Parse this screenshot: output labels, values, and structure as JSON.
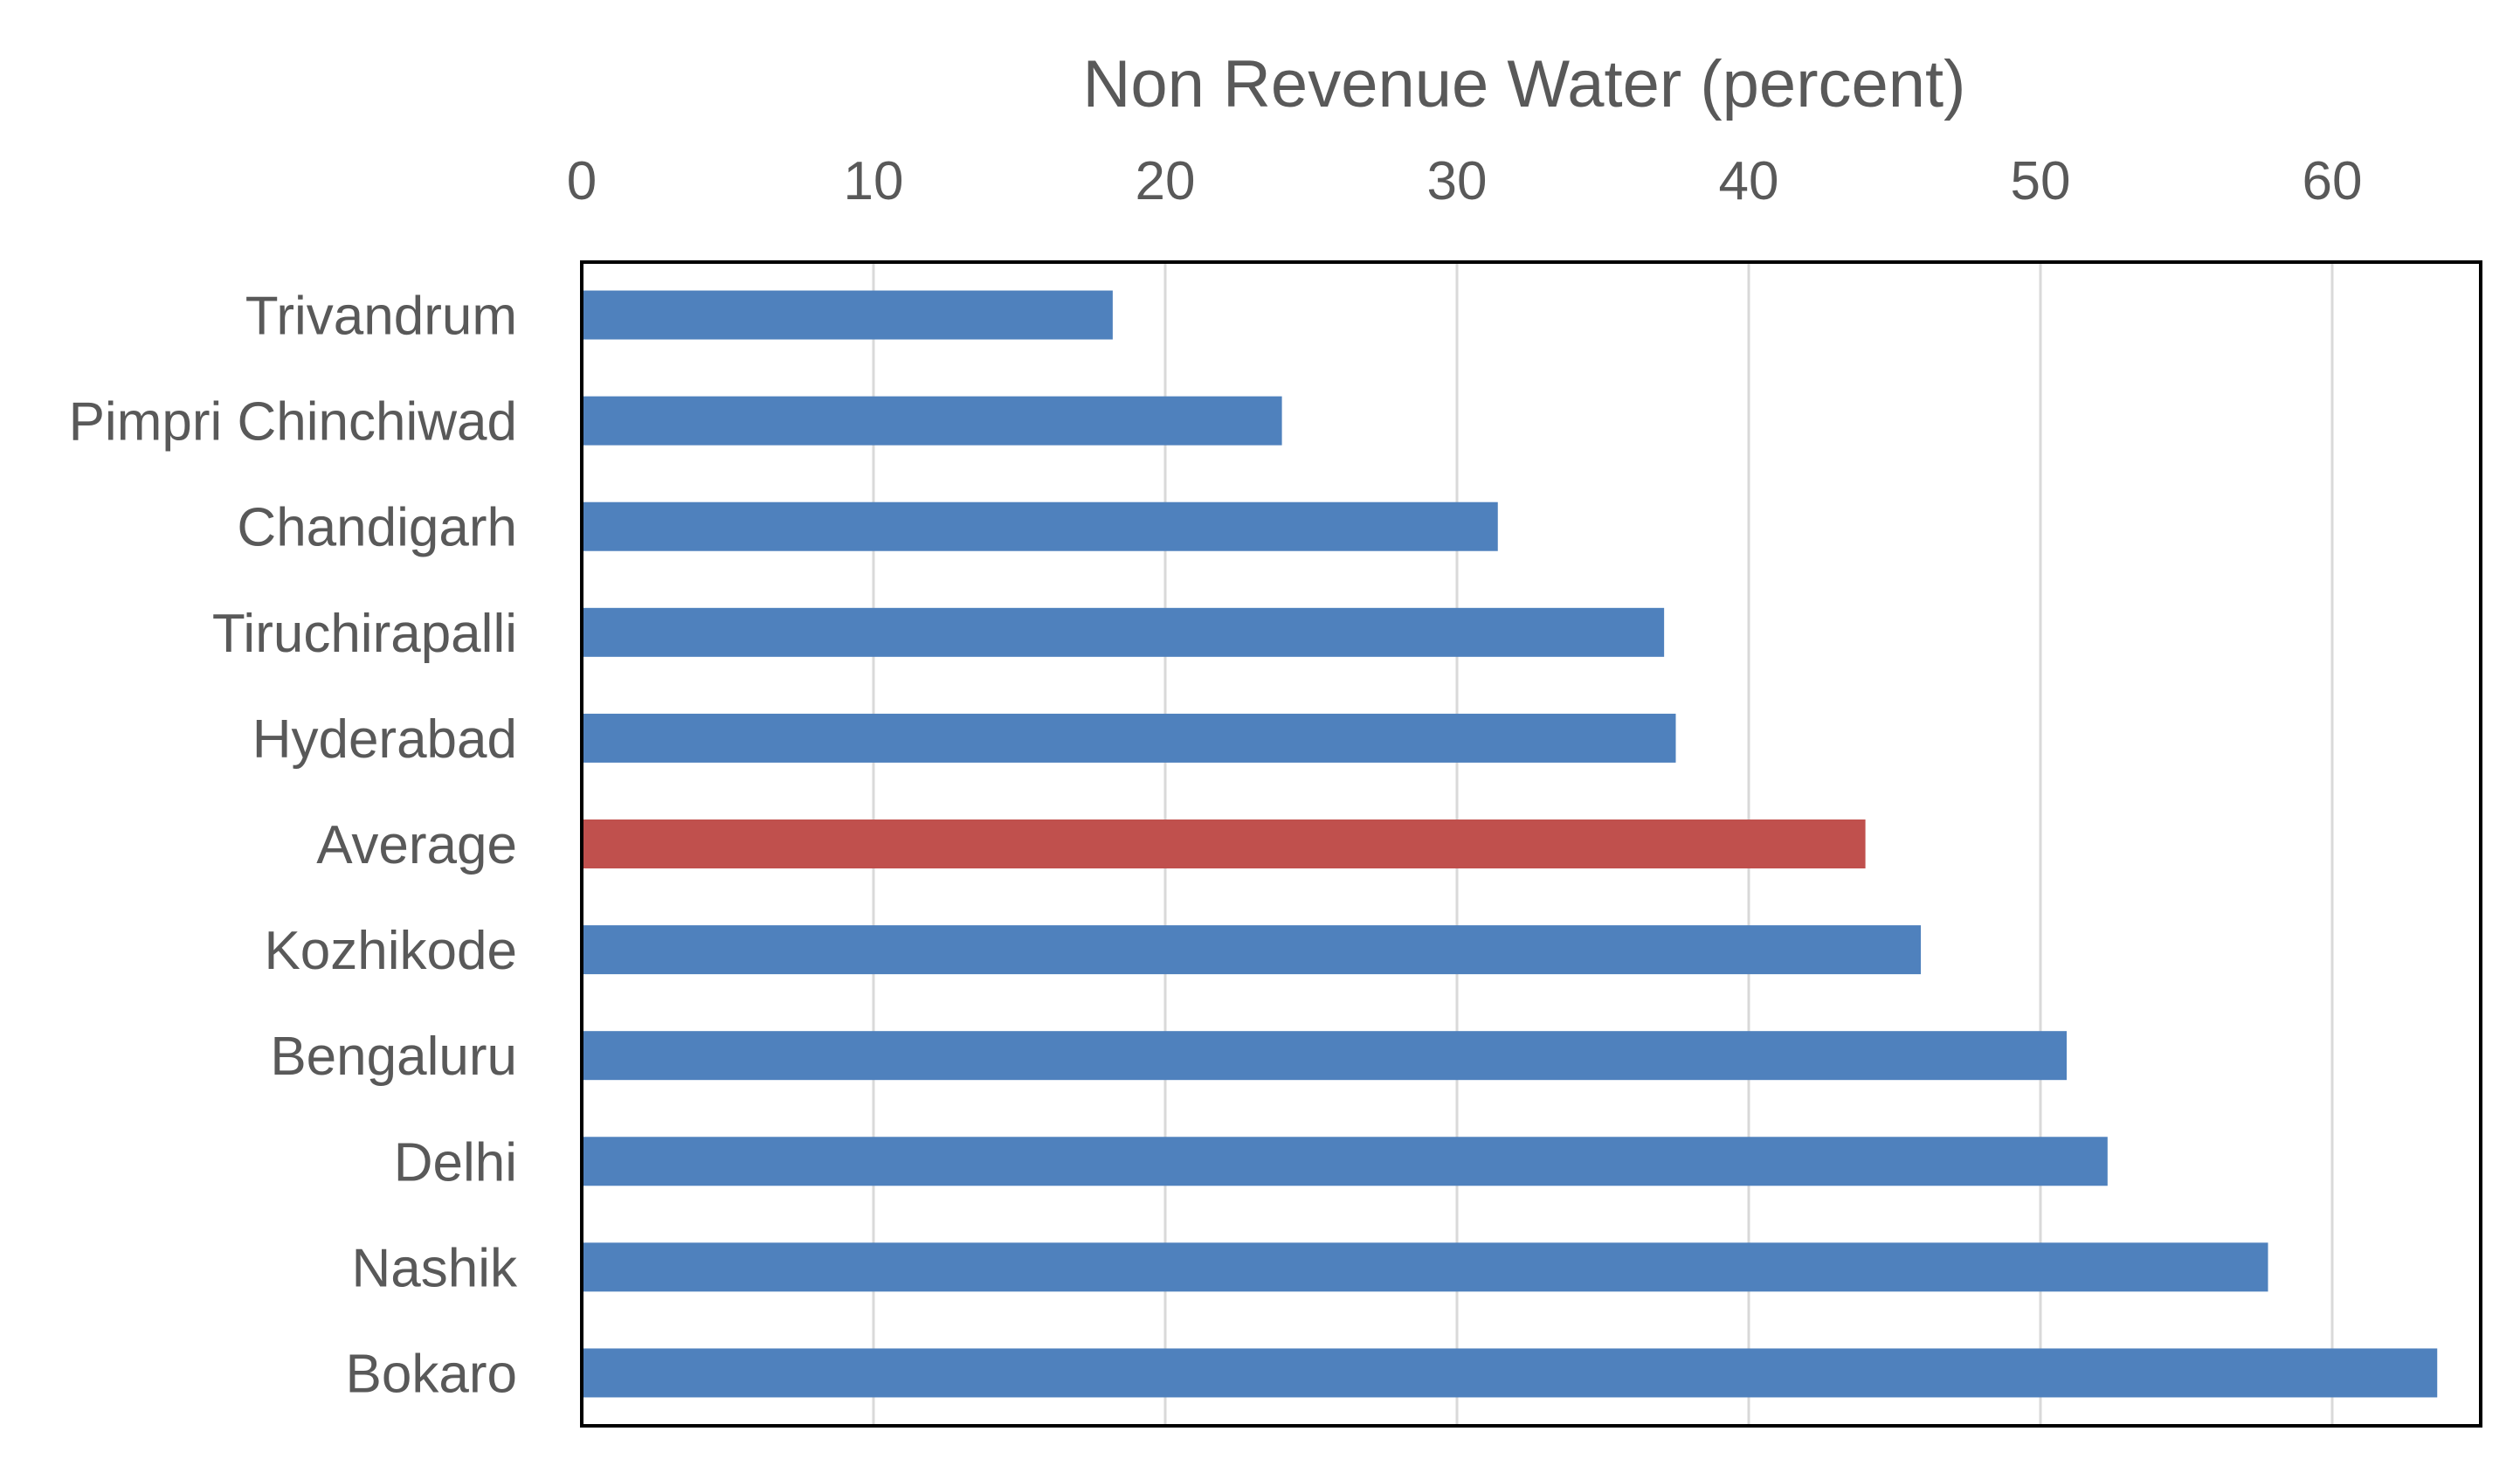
{
  "chart_data": {
    "type": "bar",
    "orientation": "horizontal",
    "title": "",
    "xlabel": "Non Revenue Water (percent)",
    "ylabel": "",
    "xlim": [
      0,
      65
    ],
    "x_ticks": [
      0,
      10,
      20,
      30,
      40,
      50,
      60
    ],
    "x_axis_position": "top",
    "grid": true,
    "legend": "none",
    "categories": [
      "Trivandrum",
      "Pimpri Chinchiwad",
      "Chandigarh",
      "Tiruchirapalli",
      "Hyderabad",
      "Average",
      "Kozhikode",
      "Bengaluru",
      "Delhi",
      "Nashik",
      "Bokaro"
    ],
    "values": [
      18.2,
      24.0,
      31.4,
      37.1,
      37.5,
      44.0,
      45.9,
      50.9,
      52.3,
      57.8,
      63.6
    ],
    "colors": {
      "default": "#4F81BD",
      "highlight": "#C0504D",
      "grid": "#D9D9D9",
      "frame": "#000000",
      "text": "#595959"
    },
    "highlight_category": "Average"
  }
}
